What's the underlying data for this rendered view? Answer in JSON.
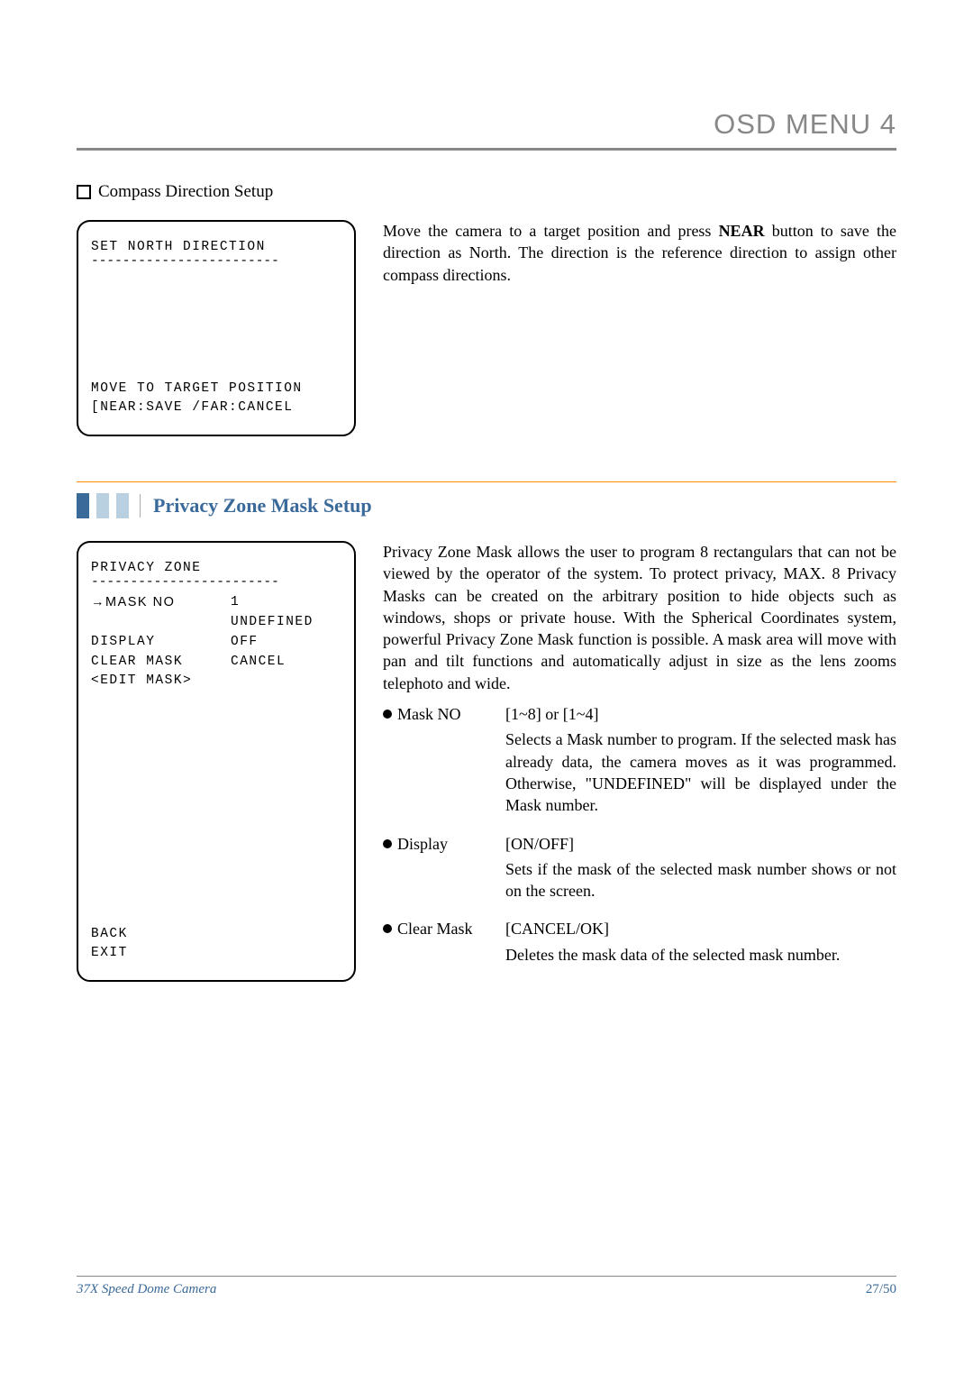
{
  "colors": {
    "gray_header": "#888888",
    "blue_dark": "#3a6a9a",
    "blue_light": "#b8d0e0",
    "orange": "#ff8800",
    "text": "#000000",
    "bg": "#ffffff"
  },
  "typography": {
    "body_font": "Georgia, serif",
    "mono_font": "Courier New, monospace",
    "header_fontsize": 31,
    "body_fontsize": 18,
    "section_title_fontsize": 22,
    "osd_fontsize": 14.5,
    "footer_fontsize": 15
  },
  "header": {
    "title": "OSD MENU 4"
  },
  "compass_section": {
    "checkbox_title": "Compass Direction Setup",
    "osd": {
      "title": "SET NORTH DIRECTION",
      "divider": "------------------------",
      "bottom1": "MOVE TO TARGET POSITION",
      "bottom2": "[NEAR:SAVE /FAR:CANCEL"
    },
    "desc_parts": {
      "p1": "Move the camera to a target position and press ",
      "bold": "NEAR",
      "p2": " button to save the direction as North. The direction is the reference direction to assign other compass directions."
    }
  },
  "privacy_section": {
    "title": "Privacy Zone Mask Setup",
    "osd": {
      "title": "PRIVACY ZONE",
      "divider": "------------------------",
      "rows": [
        {
          "col1": "→MASK NO",
          "col2": "1"
        },
        {
          "col1": "",
          "col2": "UNDEFINED"
        },
        {
          "col1": " DISPLAY",
          "col2": "OFF"
        },
        {
          "col1": " CLEAR MASK",
          "col2": "CANCEL"
        },
        {
          "col1": " <EDIT MASK>",
          "col2": ""
        }
      ],
      "back": " BACK",
      "exit": " EXIT"
    },
    "intro": "Privacy Zone Mask allows the user to program 8 rectangulars that can not be viewed by the operator of the system. To protect privacy, MAX. 8 Privacy Masks can be created on the arbitrary position to hide objects such as windows, shops or private house. With the Spherical Coordinates system, powerful Privacy Zone Mask function is possible. A mask area will move with pan and tilt functions and automatically adjust in size as the lens zooms telephoto and wide.",
    "items": [
      {
        "label": "Mask NO",
        "value": "[1~8] or [1~4]",
        "desc": "Selects a Mask number to program. If the selected mask has already data, the camera moves as it was programmed. Otherwise, \"UNDEFINED\" will be displayed under the Mask number."
      },
      {
        "label": "Display",
        "value": "[ON/OFF]",
        "desc": "Sets if the mask of the selected mask number shows or not on the screen."
      },
      {
        "label": "Clear Mask",
        "value": "[CANCEL/OK]",
        "desc": "Deletes the mask data of the selected mask number."
      }
    ]
  },
  "footer": {
    "left": "37X Speed Dome Camera",
    "right": "27/50"
  }
}
